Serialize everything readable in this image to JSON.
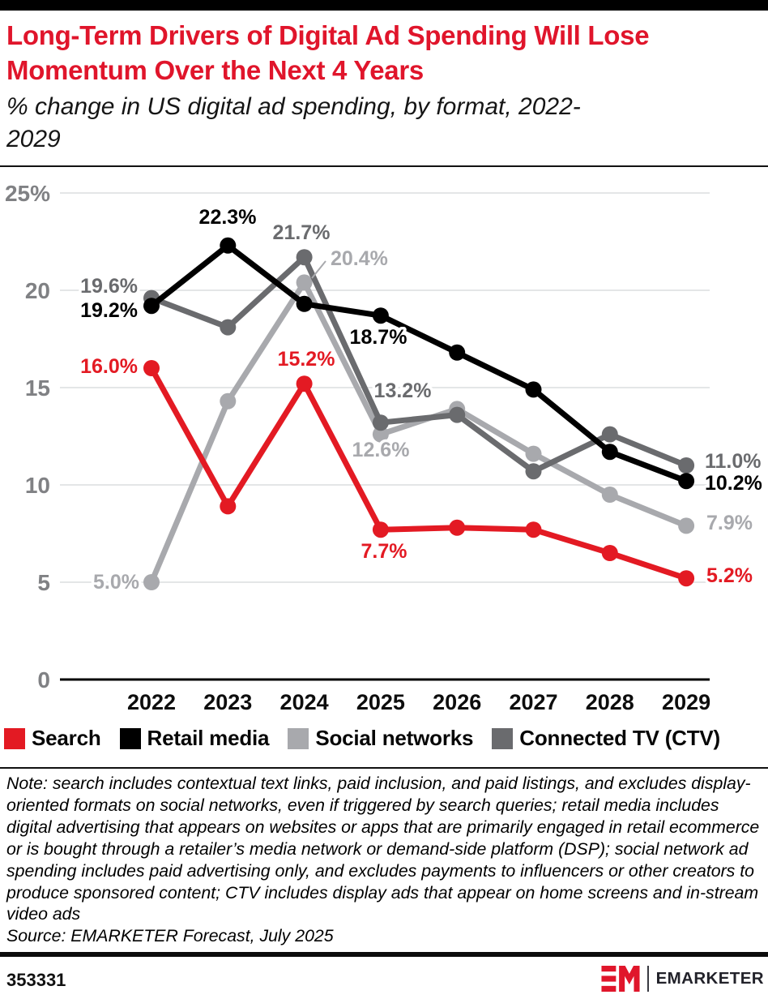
{
  "header": {
    "title": "Long-Term Drivers of Digital Ad Spending Will Lose Momentum Over the Next 4 Years",
    "subtitle": "% change in US digital ad spending, by format, 2022-2029"
  },
  "chart_data": {
    "type": "line",
    "title": "Long-Term Drivers of Digital Ad Spending Will Lose Momentum Over the Next 4 Years",
    "subtitle": "% change in US digital ad spending, by format, 2022-2029",
    "x": [
      "2022",
      "2023",
      "2024",
      "2025",
      "2026",
      "2027",
      "2028",
      "2029"
    ],
    "ylim": [
      0,
      25
    ],
    "grid": true,
    "legend_position": "bottom",
    "yticks": [
      {
        "value": 25,
        "label": "25%"
      },
      {
        "value": 20,
        "label": "20"
      },
      {
        "value": 15,
        "label": "15"
      },
      {
        "value": 10,
        "label": "10"
      },
      {
        "value": 5,
        "label": "5"
      },
      {
        "value": 0,
        "label": "0"
      }
    ],
    "series": [
      {
        "key": "search",
        "name": "Search",
        "color": "#e31a23",
        "values": [
          16.0,
          8.9,
          15.2,
          7.7,
          7.8,
          7.7,
          6.5,
          5.2
        ],
        "point_labels": {
          "2022": "16.0%",
          "2024": "15.2%",
          "2025": "7.7%",
          "2029": "5.2%"
        }
      },
      {
        "key": "retail",
        "name": "Retail media",
        "color": "#000000",
        "values": [
          19.2,
          22.3,
          19.3,
          18.7,
          16.8,
          14.9,
          11.7,
          10.2
        ],
        "point_labels": {
          "2022": "19.2%",
          "2023": "22.3%",
          "2025": "18.7%",
          "2029": "10.2%"
        }
      },
      {
        "key": "social",
        "name": "Social networks",
        "color": "#a8a9ad",
        "values": [
          5.0,
          14.3,
          20.4,
          12.6,
          13.9,
          11.6,
          9.5,
          7.9
        ],
        "point_labels": {
          "2022": "5.0%",
          "2024": "20.4%",
          "2025": "12.6%",
          "2029": "7.9%"
        }
      },
      {
        "key": "ctv",
        "name": "Connected TV (CTV)",
        "color": "#6a6b6e",
        "values": [
          19.6,
          18.1,
          21.7,
          13.2,
          13.6,
          10.7,
          12.6,
          11.0
        ],
        "point_labels": {
          "2022": "19.6%",
          "2024": "21.7%",
          "2025": "13.2%",
          "2029": "11.0%"
        }
      }
    ]
  },
  "note": {
    "text": "Note: search includes contextual text links, paid inclusion, and paid listings, and excludes display-oriented formats on social networks, even if triggered by search queries; retail media includes digital advertising that appears on websites or apps that are primarily engaged in retail ecommerce or is bought through a retailer’s media network or demand-side platform (DSP); social network ad spending includes paid advertising only, and excludes payments to influencers or other creators to produce sponsored content; CTV includes display ads that appear on home screens and in-stream video ads",
    "source": "Source: EMARKETER Forecast, July 2025"
  },
  "footer": {
    "chart_id": "353331",
    "brand": "EMARKETER",
    "brand_color": "#e0162b"
  }
}
